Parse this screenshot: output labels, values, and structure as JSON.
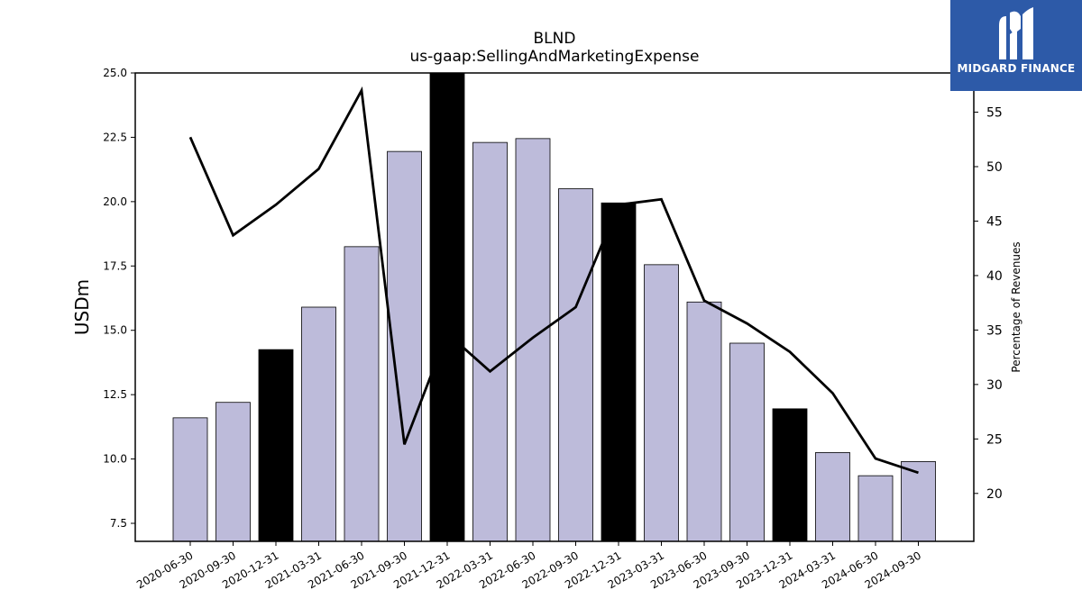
{
  "chart_data": {
    "type": "bar",
    "title": "BLND",
    "subtitle": "us-gaap:SellingAndMarketingExpense",
    "ylabel": "USDm",
    "y2label": "Percentage of Revenues",
    "ylim": [
      6.8,
      25.0
    ],
    "y2lim": [
      15.6,
      58.6
    ],
    "yticks": [
      "7.5",
      "10.0",
      "12.5",
      "15.0",
      "17.5",
      "20.0",
      "22.5",
      "25.0"
    ],
    "y2ticks": [
      "20",
      "25",
      "30",
      "35",
      "40",
      "45",
      "50",
      "55"
    ],
    "categories": [
      "2020-06-30",
      "2020-09-30",
      "2020-12-31",
      "2021-03-31",
      "2021-06-30",
      "2021-09-30",
      "2021-12-31",
      "2022-03-31",
      "2022-06-30",
      "2022-09-30",
      "2022-12-31",
      "2023-03-31",
      "2023-06-30",
      "2023-09-30",
      "2023-12-31",
      "2024-03-31",
      "2024-06-30",
      "2024-09-30"
    ],
    "series": [
      {
        "type": "bar",
        "values": [
          11.6,
          12.2,
          14.25,
          15.9,
          18.25,
          21.95,
          25.0,
          22.3,
          22.45,
          20.5,
          19.95,
          17.55,
          16.1,
          14.5,
          11.95,
          10.25,
          9.35,
          9.9
        ],
        "highlight": [
          false,
          false,
          true,
          false,
          false,
          false,
          true,
          false,
          false,
          false,
          true,
          false,
          false,
          false,
          true,
          false,
          false,
          false
        ]
      },
      {
        "type": "line",
        "axis": "secondary",
        "values": [
          52.7,
          43.7,
          46.5,
          49.8,
          57.0,
          24.5,
          34.7,
          31.2,
          34.3,
          37.1,
          46.5,
          47.0,
          37.7,
          35.6,
          33.0,
          29.2,
          23.2,
          21.9
        ]
      }
    ],
    "colors": {
      "bar": "#bdbbda",
      "bar_highlight": "#000000",
      "line": "#000000"
    }
  },
  "logo": {
    "text": "MIDGARD FINANCE",
    "background": "#2d5aa8"
  }
}
